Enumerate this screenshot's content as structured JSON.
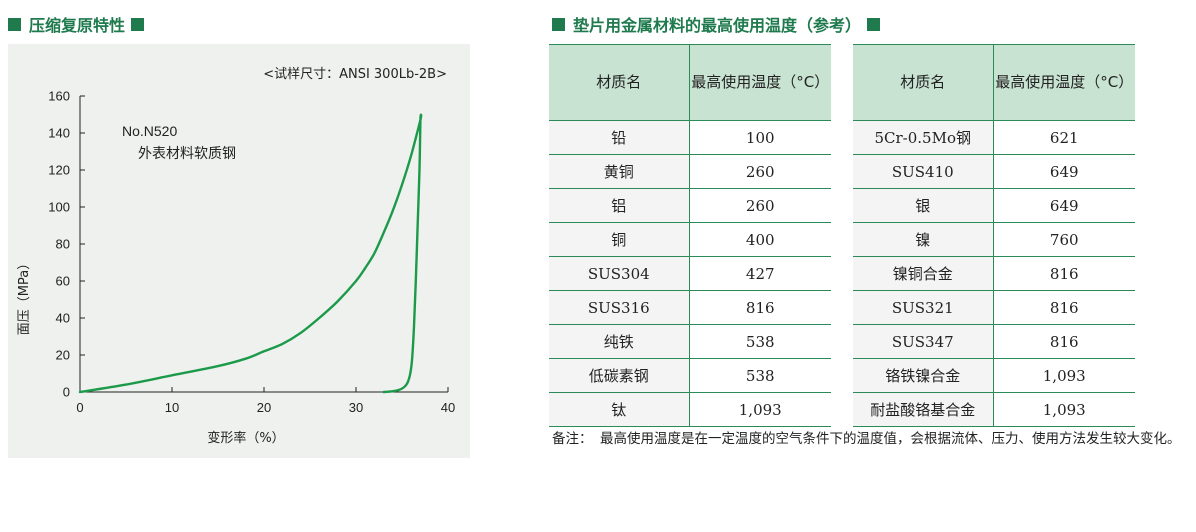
{
  "left_title": "压缩复原特性",
  "right_title": "垫片用金属材料的最高使用温度（参考）",
  "chart_data": {
    "type": "line",
    "title": "",
    "specimen": "<试样尺寸：ANSI 300Lb-2B>",
    "annotation_line1": "No.N520",
    "annotation_line2": "外表材料软质钢",
    "xlabel": "变形率（%）",
    "ylabel": "面压（MPa）",
    "xlim": [
      0,
      40
    ],
    "ylim": [
      0,
      160
    ],
    "xticks": [
      "0",
      "10",
      "20",
      "30",
      "40"
    ],
    "yticks": [
      "0",
      "20",
      "40",
      "60",
      "80",
      "100",
      "120",
      "140",
      "160"
    ],
    "grid": false,
    "series": [
      {
        "name": "",
        "color": "#1c9a4a",
        "x": [
          0,
          5,
          10,
          15,
          18,
          20,
          22,
          24,
          26,
          28,
          30,
          31,
          32,
          33,
          34,
          35,
          36,
          37,
          37,
          36.9,
          36.7,
          36.5,
          36.3,
          36.1,
          35.9,
          35.6,
          35.2,
          34.6,
          33.8,
          33
        ],
        "y": [
          0,
          4,
          9,
          14,
          18,
          22,
          26,
          32,
          40,
          49,
          60,
          67,
          75,
          86,
          98,
          112,
          128,
          147,
          147,
          120,
          90,
          60,
          35,
          18,
          10,
          5,
          2.5,
          1,
          0.3,
          0
        ]
      }
    ]
  },
  "table_headers": {
    "material": "材质名",
    "max_temp": "最高使用温度（°C）"
  },
  "table_left": [
    {
      "material": "铅",
      "temp": "100"
    },
    {
      "material": "黄铜",
      "temp": "260"
    },
    {
      "material": "铝",
      "temp": "260"
    },
    {
      "material": "铜",
      "temp": "400"
    },
    {
      "material": "SUS304",
      "temp": "427"
    },
    {
      "material": "SUS316",
      "temp": "816"
    },
    {
      "material": "纯铁",
      "temp": "538"
    },
    {
      "material": "低碳素钢",
      "temp": "538"
    },
    {
      "material": "钛",
      "temp": "1,093"
    }
  ],
  "table_right": [
    {
      "material": "5Cr-0.5Mo钢",
      "temp": "621"
    },
    {
      "material": "SUS410",
      "temp": "649"
    },
    {
      "material": "银",
      "temp": "649"
    },
    {
      "material": "镍",
      "temp": "760"
    },
    {
      "material": "镍铜合金",
      "temp": "816"
    },
    {
      "material": "SUS321",
      "temp": "816"
    },
    {
      "material": "SUS347",
      "temp": "816"
    },
    {
      "material": "铬铁镍合金",
      "temp": "1,093"
    },
    {
      "material": "耐盐酸铬基合金",
      "temp": "1,093"
    }
  ],
  "note": {
    "label": "备注：",
    "text": "最高使用温度是在一定温度的空气条件下的温度值，会根据流体、压力、使用方法发生较大变化。"
  }
}
